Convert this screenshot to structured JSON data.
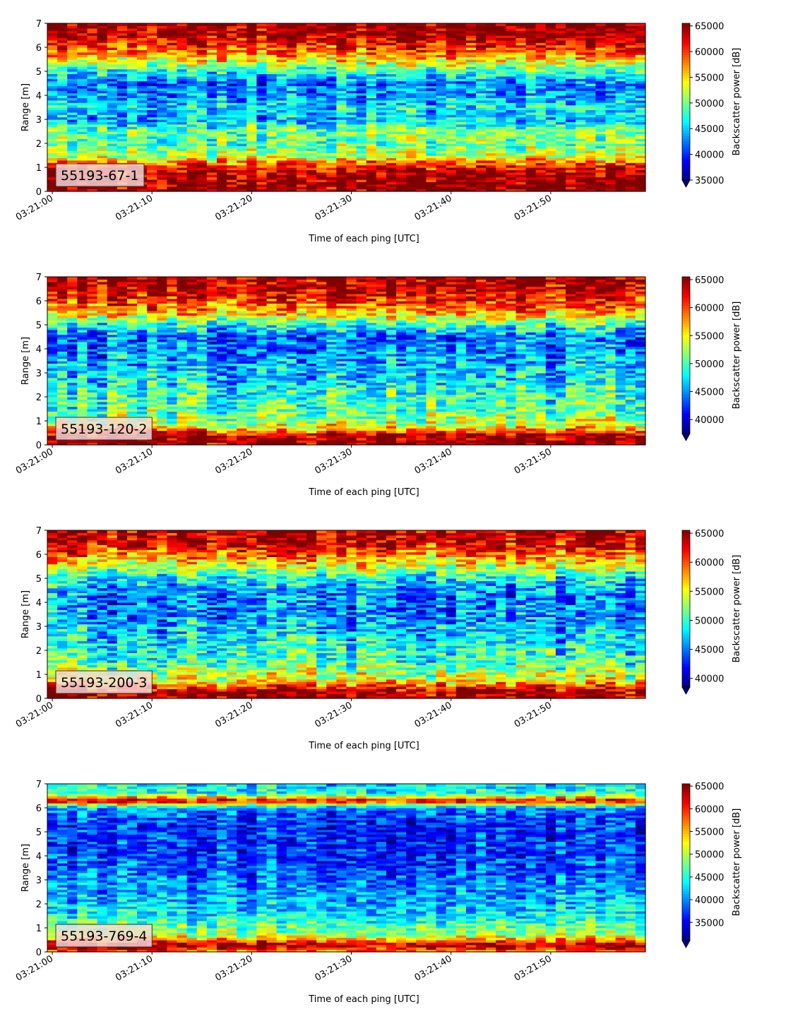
{
  "chart_data": [
    {
      "type": "heatmap",
      "label": "55193-67-1",
      "xlabel": "Time of each ping [UTC]",
      "ylabel": "Range [m]",
      "colorbar_label": "Backscatter power [dB]",
      "colormap": "jet",
      "xlim": [
        "03:21:00",
        "03:21:59"
      ],
      "ylim": [
        0,
        7
      ],
      "xticks": [
        "03:21:00",
        "03:21:10",
        "03:21:20",
        "03:21:30",
        "03:21:40",
        "03:21:50"
      ],
      "yticks": [
        0,
        1,
        2,
        3,
        4,
        5,
        6,
        7
      ],
      "clim": [
        35000,
        65500
      ],
      "cbar_ticks": [
        35000,
        40000,
        45000,
        50000,
        55000,
        60000,
        65000
      ],
      "profile": [
        {
          "range": 0.1,
          "value": 65000
        },
        {
          "range": 0.5,
          "value": 65000
        },
        {
          "range": 1.0,
          "value": 62000
        },
        {
          "range": 1.5,
          "value": 52000
        },
        {
          "range": 2.0,
          "value": 49000
        },
        {
          "range": 2.5,
          "value": 50000
        },
        {
          "range": 3.0,
          "value": 44000
        },
        {
          "range": 3.5,
          "value": 46000
        },
        {
          "range": 4.0,
          "value": 43000
        },
        {
          "range": 4.5,
          "value": 42000
        },
        {
          "range": 5.0,
          "value": 47000
        },
        {
          "range": 5.5,
          "value": 55000
        },
        {
          "range": 6.0,
          "value": 60000
        },
        {
          "range": 6.5,
          "value": 64000
        },
        {
          "range": 7.0,
          "value": 65000
        }
      ]
    },
    {
      "type": "heatmap",
      "label": "55193-120-2",
      "xlabel": "Time of each ping [UTC]",
      "ylabel": "Range [m]",
      "colorbar_label": "Backscatter power [dB]",
      "colormap": "jet",
      "xlim": [
        "03:21:00",
        "03:21:59"
      ],
      "ylim": [
        0,
        7
      ],
      "xticks": [
        "03:21:00",
        "03:21:10",
        "03:21:20",
        "03:21:30",
        "03:21:40",
        "03:21:50"
      ],
      "yticks": [
        0,
        1,
        2,
        3,
        4,
        5,
        6,
        7
      ],
      "clim": [
        37500,
        65500
      ],
      "cbar_ticks": [
        40000,
        45000,
        50000,
        55000,
        60000,
        65000
      ],
      "profile": [
        {
          "range": 0.1,
          "value": 65000
        },
        {
          "range": 0.4,
          "value": 65000
        },
        {
          "range": 0.8,
          "value": 54000
        },
        {
          "range": 1.5,
          "value": 50000
        },
        {
          "range": 2.0,
          "value": 50000
        },
        {
          "range": 2.5,
          "value": 48000
        },
        {
          "range": 3.0,
          "value": 47000
        },
        {
          "range": 3.5,
          "value": 46000
        },
        {
          "range": 4.0,
          "value": 44500
        },
        {
          "range": 4.5,
          "value": 44000
        },
        {
          "range": 5.0,
          "value": 49000
        },
        {
          "range": 5.5,
          "value": 57000
        },
        {
          "range": 6.0,
          "value": 61000
        },
        {
          "range": 6.5,
          "value": 64000
        },
        {
          "range": 7.0,
          "value": 64500
        }
      ]
    },
    {
      "type": "heatmap",
      "label": "55193-200-3",
      "xlabel": "Time of each ping [UTC]",
      "ylabel": "Range [m]",
      "colorbar_label": "Backscatter power [dB]",
      "colormap": "jet",
      "xlim": [
        "03:21:00",
        "03:21:59"
      ],
      "ylim": [
        0,
        7
      ],
      "xticks": [
        "03:21:00",
        "03:21:10",
        "03:21:20",
        "03:21:30",
        "03:21:40",
        "03:21:50"
      ],
      "yticks": [
        0,
        1,
        2,
        3,
        4,
        5,
        6,
        7
      ],
      "clim": [
        38500,
        65500
      ],
      "cbar_ticks": [
        40000,
        45000,
        50000,
        55000,
        60000,
        65000
      ],
      "profile": [
        {
          "range": 0.1,
          "value": 65000
        },
        {
          "range": 0.3,
          "value": 64500
        },
        {
          "range": 0.8,
          "value": 55000
        },
        {
          "range": 1.5,
          "value": 50500
        },
        {
          "range": 2.0,
          "value": 49500
        },
        {
          "range": 2.5,
          "value": 48000
        },
        {
          "range": 3.0,
          "value": 47000
        },
        {
          "range": 3.5,
          "value": 45500
        },
        {
          "range": 4.0,
          "value": 45000
        },
        {
          "range": 4.5,
          "value": 45500
        },
        {
          "range": 5.0,
          "value": 49000
        },
        {
          "range": 5.5,
          "value": 54000
        },
        {
          "range": 6.0,
          "value": 59000
        },
        {
          "range": 6.5,
          "value": 63500
        },
        {
          "range": 7.0,
          "value": 64000
        }
      ]
    },
    {
      "type": "heatmap",
      "label": "55193-769-4",
      "xlabel": "Time of each ping [UTC]",
      "ylabel": "Range [m]",
      "colorbar_label": "Backscatter power [dB]",
      "colormap": "jet",
      "xlim": [
        "03:21:00",
        "03:21:59"
      ],
      "ylim": [
        0,
        7
      ],
      "xticks": [
        "03:21:00",
        "03:21:10",
        "03:21:20",
        "03:21:30",
        "03:21:40",
        "03:21:50"
      ],
      "yticks": [
        0,
        1,
        2,
        3,
        4,
        5,
        6,
        7
      ],
      "clim": [
        31000,
        65500
      ],
      "cbar_ticks": [
        35000,
        40000,
        45000,
        50000,
        55000,
        60000,
        65000
      ],
      "profile": [
        {
          "range": 0.05,
          "value": 58000
        },
        {
          "range": 0.3,
          "value": 64500
        },
        {
          "range": 0.7,
          "value": 50000
        },
        {
          "range": 1.0,
          "value": 47500
        },
        {
          "range": 1.5,
          "value": 44000
        },
        {
          "range": 2.0,
          "value": 42000
        },
        {
          "range": 2.5,
          "value": 40500
        },
        {
          "range": 3.0,
          "value": 39500
        },
        {
          "range": 3.5,
          "value": 38000
        },
        {
          "range": 4.0,
          "value": 37500
        },
        {
          "range": 4.5,
          "value": 37000
        },
        {
          "range": 5.0,
          "value": 36500
        },
        {
          "range": 5.5,
          "value": 37000
        },
        {
          "range": 6.0,
          "value": 40000
        },
        {
          "range": 6.3,
          "value": 63000
        },
        {
          "range": 6.6,
          "value": 45000
        },
        {
          "range": 7.0,
          "value": 43000
        }
      ]
    }
  ]
}
